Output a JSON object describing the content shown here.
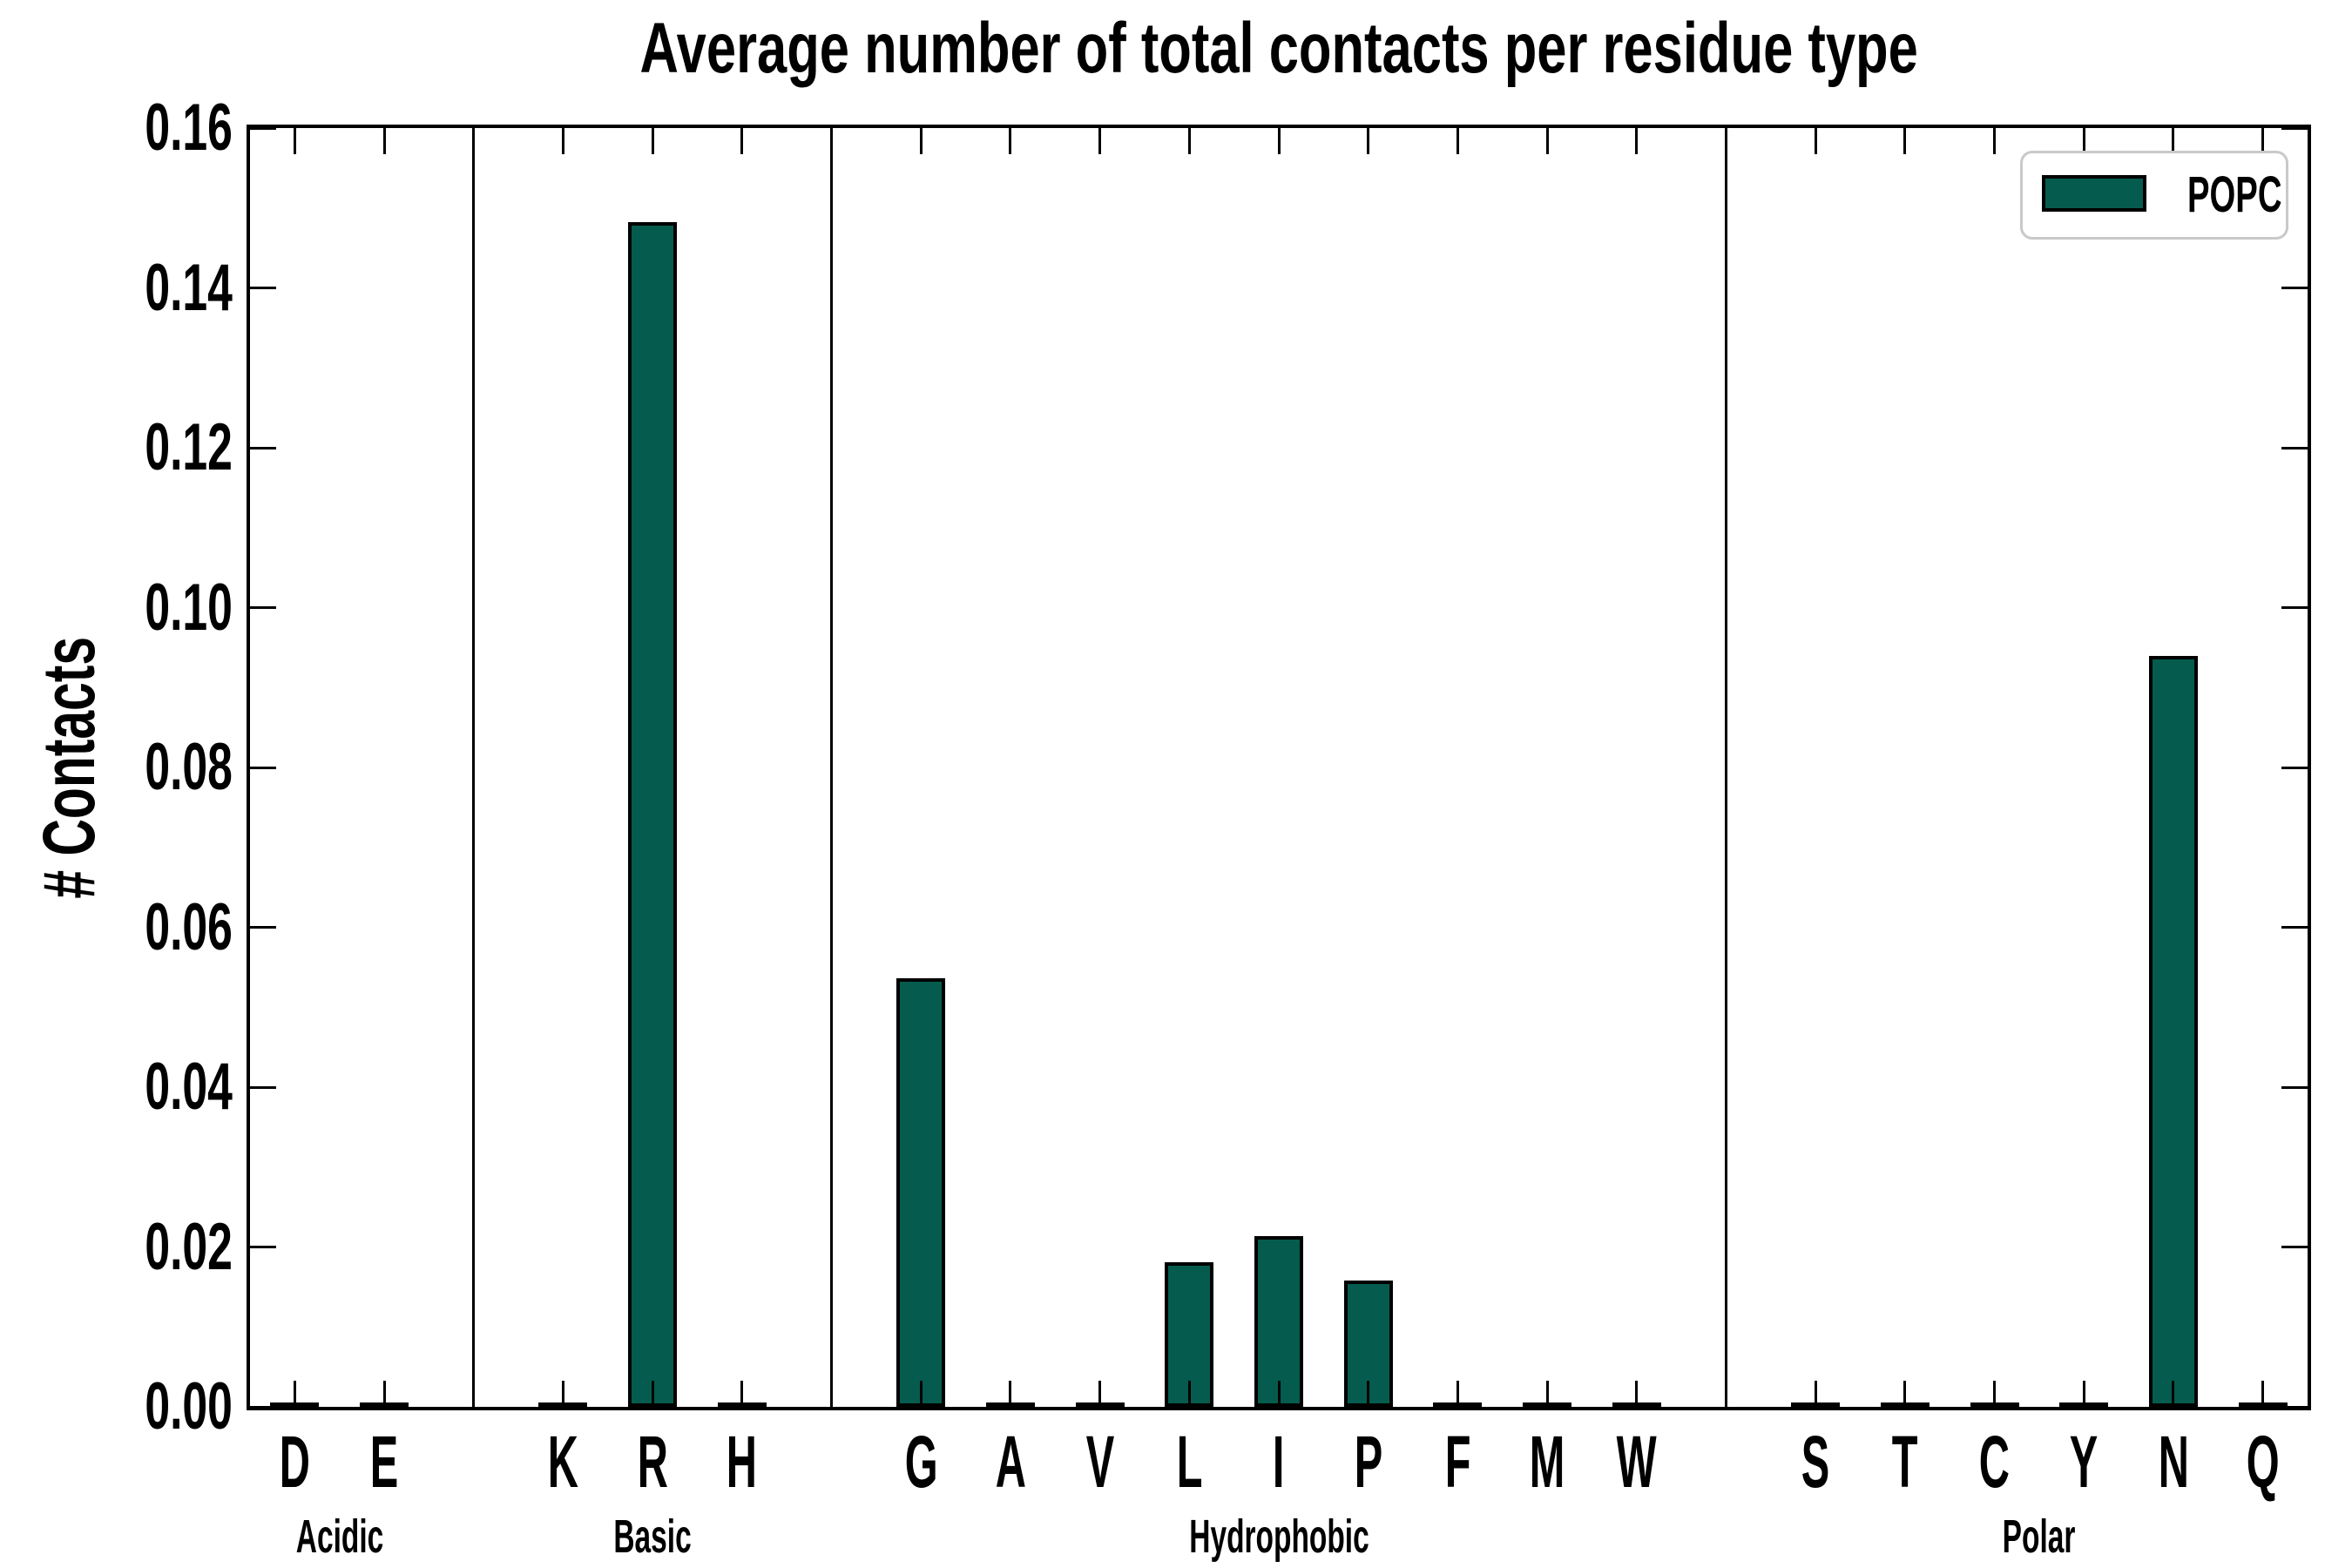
{
  "figure": {
    "background": "#ffffff",
    "title": "Average number of total contacts per residue type",
    "ylabel": "# Contacts"
  },
  "chart_data": {
    "type": "bar",
    "title": "Average number of total contacts per residue type",
    "xlabel": "",
    "ylabel": "# Contacts",
    "ylim": [
      0,
      0.16
    ],
    "ytick_step": 0.02,
    "ytick_labels": [
      "0.00",
      "0.02",
      "0.04",
      "0.06",
      "0.08",
      "0.10",
      "0.12",
      "0.14",
      "0.16"
    ],
    "grid": false,
    "tick_direction": "in",
    "bar_color": "#055C4E",
    "bar_edge_color": "#000000",
    "legend": {
      "label": "POPC",
      "position": "upper right",
      "swatch_color": "#055C4E",
      "border_color": "#c9c9c9"
    },
    "categories": [
      "D",
      "E",
      "K",
      "R",
      "H",
      "G",
      "A",
      "V",
      "L",
      "I",
      "P",
      "F",
      "M",
      "W",
      "S",
      "T",
      "C",
      "Y",
      "N",
      "Q"
    ],
    "values": [
      0.0,
      0.0,
      0.0,
      0.1482,
      0.0,
      0.0536,
      0.0,
      0.0,
      0.0181,
      0.0214,
      0.0158,
      0.0,
      0.0,
      0.0,
      0.0,
      0.0,
      0.0,
      0.0,
      0.094,
      0.0
    ],
    "groups": [
      {
        "label": "Acidic",
        "residues": [
          "D",
          "E"
        ],
        "values": [
          0.0,
          0.0
        ]
      },
      {
        "label": "Basic",
        "residues": [
          "K",
          "R",
          "H"
        ],
        "values": [
          0.0,
          0.1482,
          0.0
        ]
      },
      {
        "label": "Hydrophobic",
        "residues": [
          "G",
          "A",
          "V",
          "L",
          "I",
          "P",
          "F",
          "M",
          "W"
        ],
        "values": [
          0.0536,
          0.0,
          0.0,
          0.0181,
          0.0214,
          0.0158,
          0.0,
          0.0,
          0.0
        ]
      },
      {
        "label": "Polar",
        "residues": [
          "S",
          "T",
          "C",
          "Y",
          "N",
          "Q"
        ],
        "values": [
          0.0,
          0.0,
          0.0,
          0.0,
          0.094,
          0.0
        ]
      }
    ]
  }
}
